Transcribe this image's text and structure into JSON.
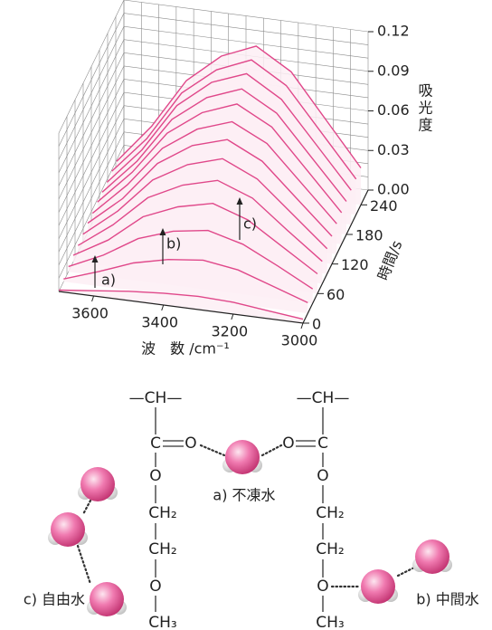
{
  "chart_data": {
    "type": "waterfall3d",
    "xlabel": "波　数 /cm⁻¹",
    "ylabel": "時間/s",
    "zlabel": "吸光度",
    "x": [
      3700,
      3600,
      3500,
      3400,
      3300,
      3200,
      3100,
      3000
    ],
    "xlim": [
      3700,
      3000
    ],
    "xticks": [
      3600,
      3400,
      3200,
      3000
    ],
    "times": [
      0,
      20,
      40,
      60,
      80,
      100,
      120,
      140,
      160,
      180,
      200,
      220,
      240
    ],
    "ylim": [
      0,
      270
    ],
    "yticks": [
      0,
      60,
      120,
      180,
      240
    ],
    "zlim": [
      0,
      0.12
    ],
    "zticks": [
      {
        "value": 0,
        "label": "0.00"
      },
      0.03,
      0.06,
      0.09,
      0.12
    ],
    "color": "#e0488a",
    "grid": true,
    "values": [
      [
        0.001,
        0.004,
        0.007,
        0.009,
        0.01,
        0.009,
        0.006,
        0.003
      ],
      [
        0.002,
        0.011,
        0.021,
        0.027,
        0.03,
        0.026,
        0.017,
        0.008
      ],
      [
        0.004,
        0.016,
        0.032,
        0.041,
        0.045,
        0.038,
        0.025,
        0.011
      ],
      [
        0.005,
        0.02,
        0.041,
        0.052,
        0.058,
        0.049,
        0.032,
        0.015
      ],
      [
        0.005,
        0.024,
        0.048,
        0.061,
        0.068,
        0.058,
        0.037,
        0.017
      ],
      [
        0.006,
        0.027,
        0.054,
        0.069,
        0.077,
        0.065,
        0.042,
        0.019
      ],
      [
        0.007,
        0.029,
        0.059,
        0.076,
        0.084,
        0.071,
        0.046,
        0.021
      ],
      [
        0.007,
        0.032,
        0.063,
        0.081,
        0.09,
        0.077,
        0.05,
        0.023
      ],
      [
        0.008,
        0.034,
        0.067,
        0.086,
        0.096,
        0.082,
        0.053,
        0.024
      ],
      [
        0.008,
        0.035,
        0.07,
        0.09,
        0.1,
        0.085,
        0.055,
        0.025
      ],
      [
        0.008,
        0.036,
        0.073,
        0.094,
        0.104,
        0.088,
        0.057,
        0.026
      ],
      [
        0.009,
        0.037,
        0.075,
        0.096,
        0.107,
        0.091,
        0.059,
        0.027
      ],
      [
        0.009,
        0.039,
        0.077,
        0.099,
        0.11,
        0.094,
        0.061,
        0.028
      ]
    ],
    "annotations": [
      "a)",
      "b)",
      "c)"
    ]
  },
  "diagram": {
    "left_chain": [
      "—CH—",
      "C",
      "O",
      "CH₂",
      "CH₂",
      "O",
      "CH₃"
    ],
    "left_carbonyl": "O",
    "right_chain": [
      "—CH—",
      "C",
      "O",
      "CH₂",
      "CH₂",
      "O",
      "CH₃"
    ],
    "right_carbonyl": "O",
    "water_labels": [
      "a) 不凍水",
      "b) 中間水",
      "c) 自由水"
    ]
  }
}
